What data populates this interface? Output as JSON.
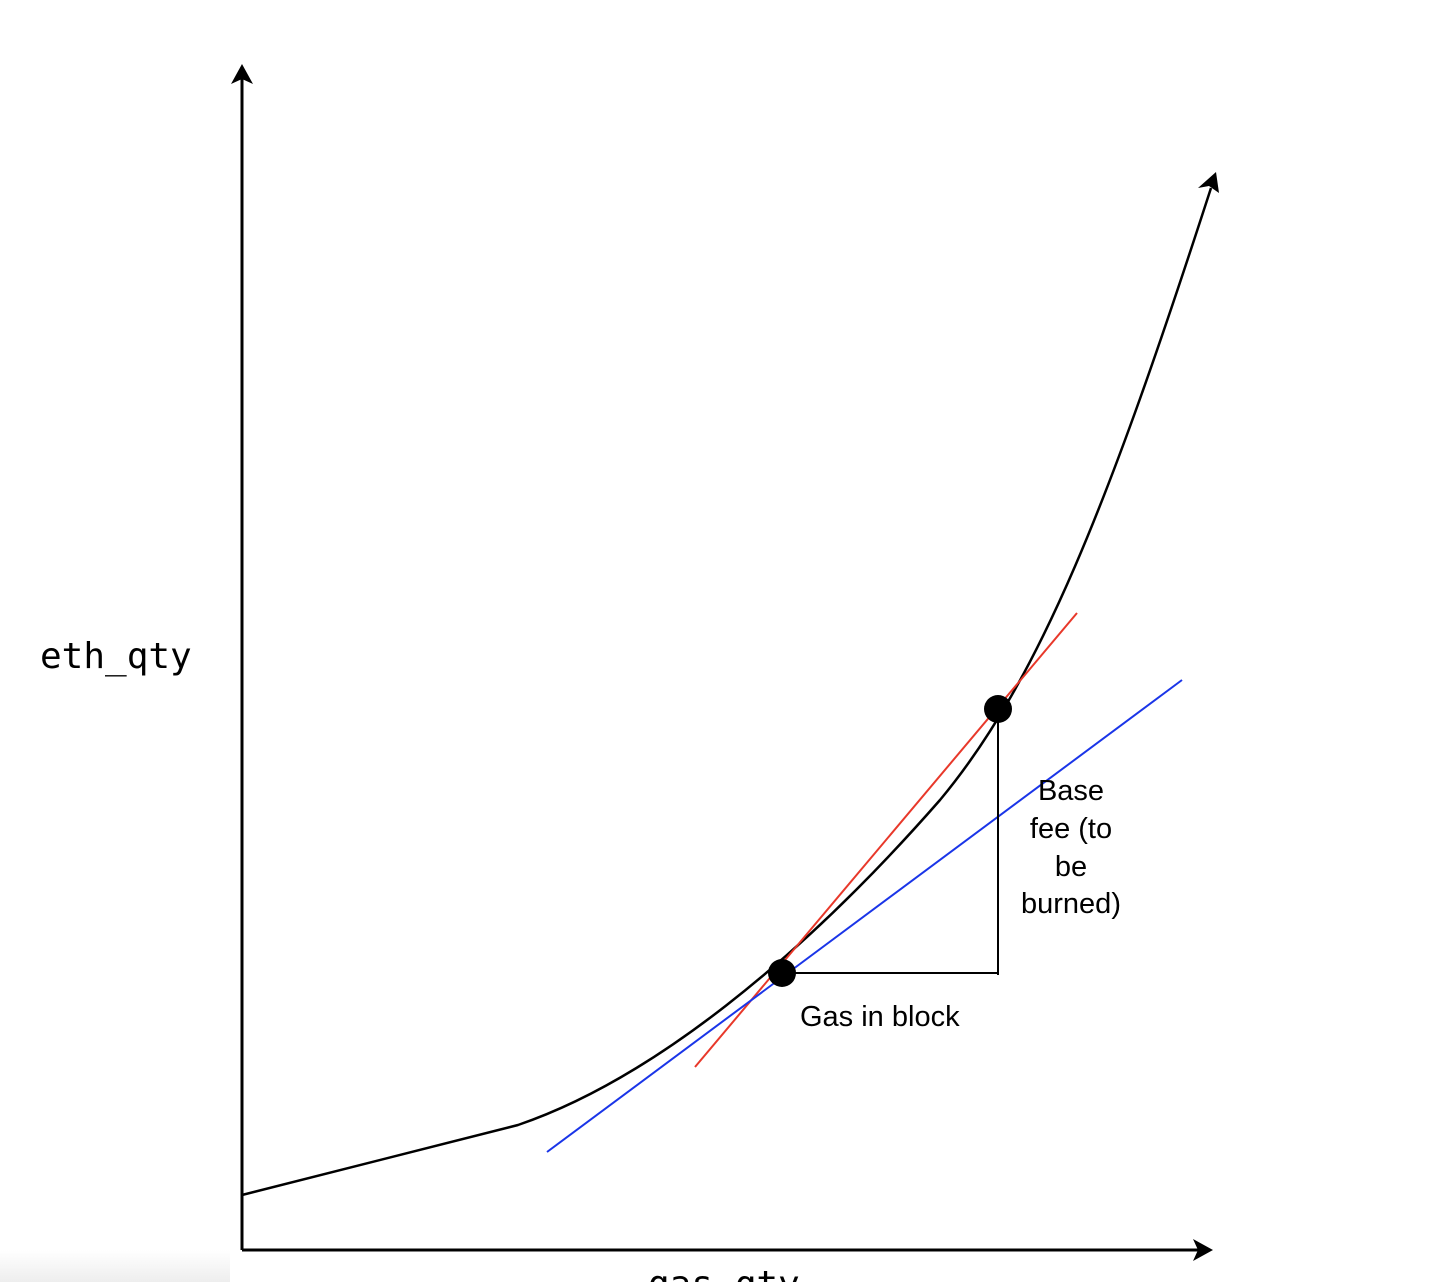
{
  "labels": {
    "y_axis": "eth_qty",
    "x_axis": "gas_qty",
    "gas_in_block": "Gas in block",
    "base_fee_lines": [
      "Base",
      "fee (to",
      "be",
      "burned)"
    ]
  },
  "colors": {
    "curve": "#000000",
    "red_tangent": "#e8382a",
    "blue_line": "#1a35e8",
    "axes": "#000000"
  }
}
